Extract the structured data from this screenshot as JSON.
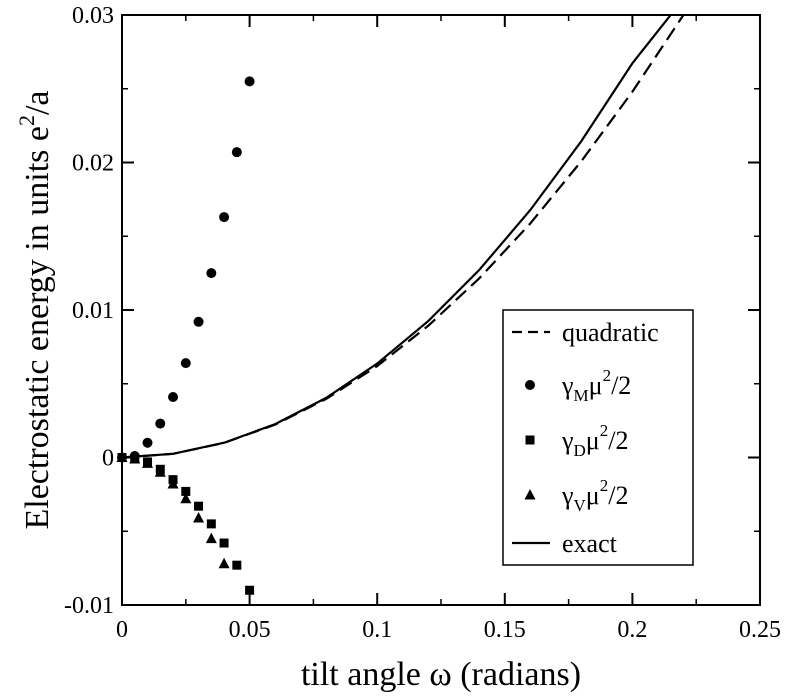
{
  "chart_data": {
    "type": "scatter",
    "xlabel": "tilt angle ω (radians)",
    "ylabel_main": "Electrostatic energy in units e",
    "ylabel_sup": "2",
    "ylabel_tail": "/a",
    "xlim": [
      0,
      0.25
    ],
    "ylim": [
      -0.01,
      0.03
    ],
    "xticks": [
      0,
      0.05,
      0.1,
      0.15,
      0.2,
      0.25
    ],
    "xtick_labels": [
      "0",
      "0.05",
      "0.1",
      "0.15",
      "0.2",
      "0.25"
    ],
    "yticks": [
      -0.01,
      0,
      0.01,
      0.02,
      0.03
    ],
    "ytick_labels": [
      "-0.01",
      "0",
      "0.01",
      "0.02",
      "0.03"
    ],
    "legend_position": "bottom-right",
    "series": [
      {
        "name": "quadratic",
        "kind": "dashed-line",
        "legend": {
          "greek": "",
          "sub": "",
          "mu": "",
          "sup": "",
          "tail": "quadratic"
        },
        "x": [
          0,
          0.02,
          0.04,
          0.06,
          0.08,
          0.1,
          0.12,
          0.14,
          0.16,
          0.18,
          0.2,
          0.22
        ],
        "y": [
          0,
          0.00025,
          0.00099,
          0.00223,
          0.00397,
          0.0062,
          0.00893,
          0.01215,
          0.01587,
          0.02009,
          0.0248,
          0.03
        ]
      },
      {
        "name": "γMμ²/2",
        "kind": "circle-markers",
        "legend": {
          "greek": "γ",
          "sub": "M",
          "mu": "μ",
          "sup": "2",
          "tail": "/2"
        },
        "x": [
          0,
          0.005,
          0.01,
          0.015,
          0.02,
          0.025,
          0.03,
          0.035,
          0.04,
          0.045,
          0.05
        ],
        "y": [
          0,
          0.0001,
          0.001,
          0.0023,
          0.0041,
          0.0064,
          0.0092,
          0.0125,
          0.0163,
          0.0207,
          0.0255
        ]
      },
      {
        "name": "γDμ²/2",
        "kind": "square-markers",
        "legend": {
          "greek": "γ",
          "sub": "D",
          "mu": "μ",
          "sup": "2",
          "tail": "/2"
        },
        "x": [
          0,
          0.005,
          0.01,
          0.015,
          0.02,
          0.025,
          0.03,
          0.035,
          0.04,
          0.045,
          0.05
        ],
        "y": [
          0,
          -0.0001,
          -0.0003,
          -0.0008,
          -0.0015,
          -0.0023,
          -0.0033,
          -0.0045,
          -0.0058,
          -0.0073,
          -0.009
        ]
      },
      {
        "name": "γVμ²/2",
        "kind": "triangle-markers",
        "legend": {
          "greek": "γ",
          "sub": "V",
          "mu": "μ",
          "sup": "2",
          "tail": "/2"
        },
        "x": [
          0,
          0.005,
          0.01,
          0.015,
          0.02,
          0.025,
          0.03,
          0.035,
          0.04
        ],
        "y": [
          0,
          -0.0001,
          -0.0004,
          -0.001,
          -0.0018,
          -0.0028,
          -0.0041,
          -0.0055,
          -0.0072
        ]
      },
      {
        "name": "exact",
        "kind": "solid-line",
        "legend": {
          "greek": "",
          "sub": "",
          "mu": "",
          "sup": "",
          "tail": "exact"
        },
        "x": [
          0,
          0.02,
          0.04,
          0.06,
          0.08,
          0.1,
          0.12,
          0.14,
          0.16,
          0.18,
          0.2,
          0.215
        ],
        "y": [
          0,
          0.00025,
          0.001,
          0.00226,
          0.00404,
          0.00637,
          0.00925,
          0.01272,
          0.01678,
          0.02145,
          0.02673,
          0.03
        ]
      }
    ]
  }
}
